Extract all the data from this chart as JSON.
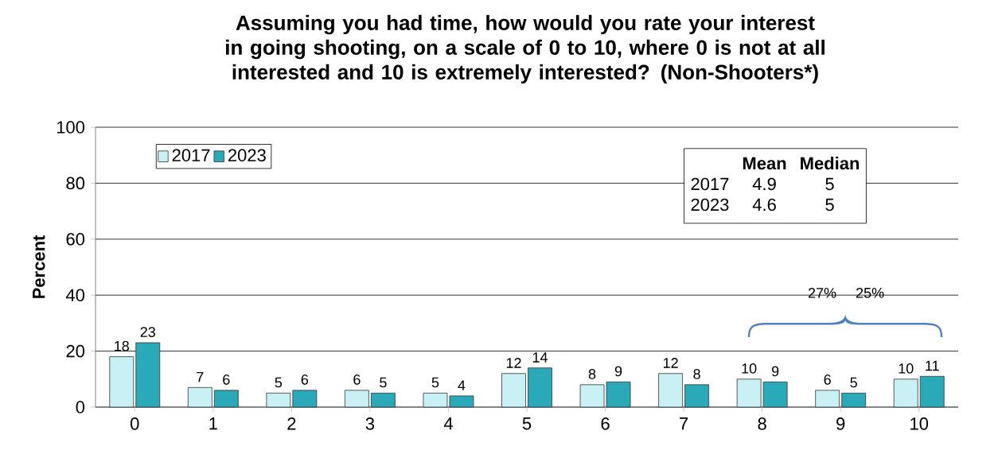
{
  "chart_data": {
    "type": "bar",
    "title": "Assuming you had time, how would you rate your interest in going shooting, on a scale of 0 to 10, where 0 is not at all interested and 10 is extremely interested? (Non-Shooters*)",
    "ylabel": "Percent",
    "categories": [
      "0",
      "1",
      "2",
      "3",
      "4",
      "5",
      "6",
      "7",
      "8",
      "9",
      "10"
    ],
    "series": [
      {
        "name": "2017",
        "color": "#c9f1f5",
        "values": [
          18,
          7,
          5,
          6,
          5,
          12,
          8,
          12,
          10,
          6,
          10
        ]
      },
      {
        "name": "2023",
        "color": "#2aa9b9",
        "values": [
          23,
          6,
          6,
          5,
          4,
          14,
          9,
          8,
          9,
          5,
          11
        ]
      }
    ],
    "ylim": [
      0,
      100
    ],
    "yticks": [
      0,
      20,
      40,
      60,
      80,
      100
    ],
    "grid": "y",
    "legend": "top left",
    "data_labels": true,
    "annotations": [
      "Mean",
      "Median",
      "2017",
      "4.9",
      "5",
      "2023",
      "4.6",
      "5",
      "27%",
      "25%"
    ]
  }
}
